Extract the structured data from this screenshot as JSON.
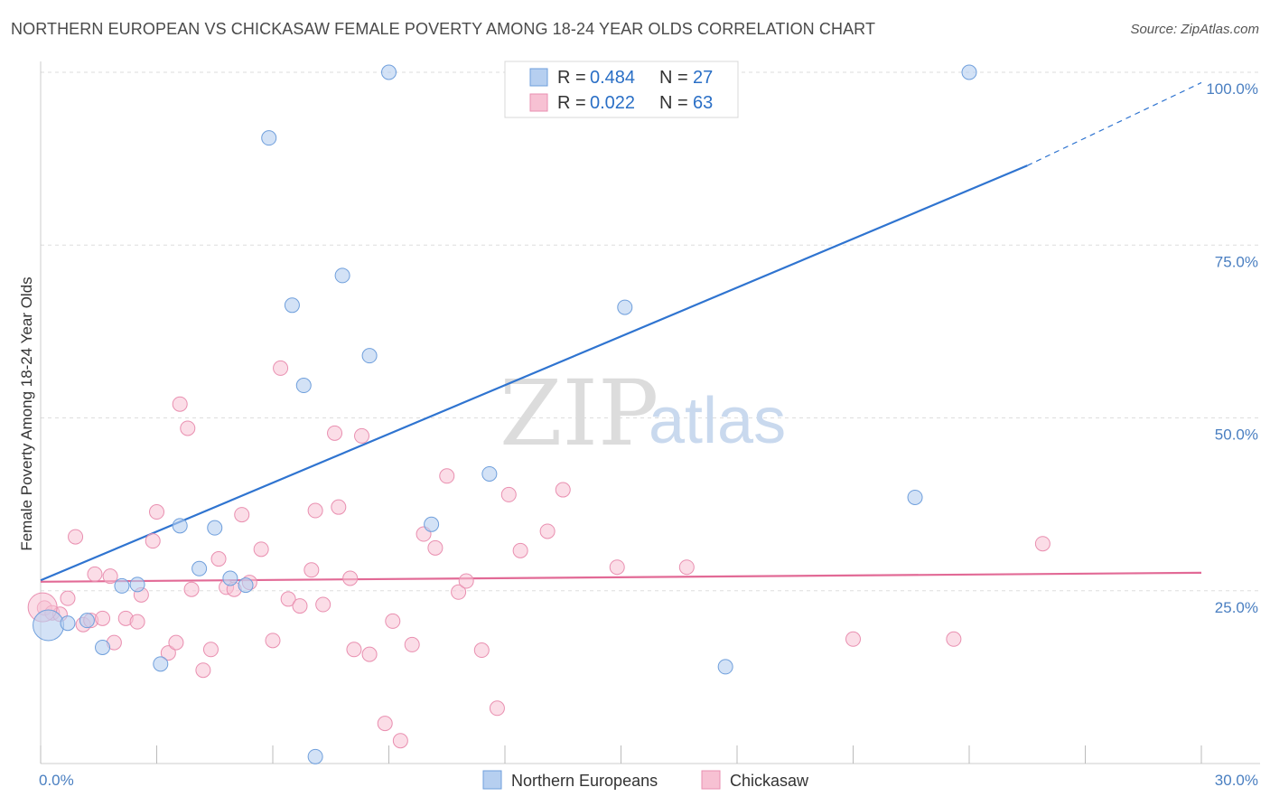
{
  "header": {
    "title": "NORTHERN EUROPEAN VS CHICKASAW FEMALE POVERTY AMONG 18-24 YEAR OLDS CORRELATION CHART",
    "source": "Source: ZipAtlas.com"
  },
  "watermark": {
    "zip": "ZIP",
    "atlas": "atlas"
  },
  "legend_top": {
    "r_label": "R =",
    "n_label": "N =",
    "rows": [
      {
        "r": "0.484",
        "n": "27"
      },
      {
        "r": "0.022",
        "n": "63"
      }
    ]
  },
  "chart_data": {
    "type": "scatter",
    "title": "NORTHERN EUROPEAN VS CHICKASAW FEMALE POVERTY AMONG 18-24 YEAR OLDS CORRELATION CHART",
    "ylabel": "Female Poverty Among 18-24 Year Olds",
    "xlim": [
      0,
      30
    ],
    "ylim": [
      0,
      100
    ],
    "x_tick_labels": [
      "0.0%",
      "30.0%"
    ],
    "y_tick_labels": [
      "25.0%",
      "50.0%",
      "75.0%",
      "100.0%"
    ],
    "y_tick_values": [
      25,
      50,
      75,
      100
    ],
    "grid": true,
    "legend_placement": "bottom-center",
    "colors": {
      "blue_fill": "#b6cff0",
      "blue_stroke": "#6f9fdc",
      "blue_line": "#2f74d0",
      "pink_fill": "#f7c1d3",
      "pink_stroke": "#e98fb0",
      "pink_line": "#e26a96"
    },
    "series": [
      {
        "name": "Northern Europeans",
        "r": 0.484,
        "n": 27,
        "trend": {
          "x0": 0,
          "y0": 26.5,
          "x1": 25.5,
          "y1": 86.5,
          "dash_x1": 30,
          "dash_y1": 98.5
        },
        "points": [
          [
            0.2,
            20.0
          ],
          [
            0.7,
            20.3
          ],
          [
            1.2,
            20.7
          ],
          [
            1.6,
            16.8
          ],
          [
            2.1,
            25.7
          ],
          [
            2.5,
            25.9
          ],
          [
            3.1,
            14.4
          ],
          [
            3.6,
            34.4
          ],
          [
            4.1,
            28.2
          ],
          [
            4.5,
            34.1
          ],
          [
            4.9,
            26.8
          ],
          [
            5.3,
            25.8
          ],
          [
            5.9,
            90.5
          ],
          [
            6.5,
            66.3
          ],
          [
            6.8,
            54.7
          ],
          [
            7.1,
            1.0
          ],
          [
            7.8,
            70.6
          ],
          [
            8.5,
            59.0
          ],
          [
            9.0,
            100.0
          ],
          [
            10.1,
            34.6
          ],
          [
            11.6,
            41.9
          ],
          [
            12.2,
            100.0
          ],
          [
            13.5,
            100.0
          ],
          [
            15.1,
            66.0
          ],
          [
            17.7,
            14.0
          ],
          [
            22.6,
            38.5
          ],
          [
            24.0,
            100.0
          ]
        ]
      },
      {
        "name": "Chickasaw",
        "r": 0.022,
        "n": 63,
        "trend": {
          "x0": 0,
          "y0": 26.3,
          "x1": 30,
          "y1": 27.6
        },
        "points": [
          [
            0.1,
            22.5
          ],
          [
            0.3,
            21.8
          ],
          [
            0.5,
            21.6
          ],
          [
            0.7,
            23.9
          ],
          [
            0.9,
            32.8
          ],
          [
            1.1,
            20.1
          ],
          [
            1.3,
            20.7
          ],
          [
            1.4,
            27.4
          ],
          [
            1.6,
            21.0
          ],
          [
            1.8,
            27.1
          ],
          [
            1.9,
            17.5
          ],
          [
            2.2,
            21.0
          ],
          [
            2.5,
            20.5
          ],
          [
            2.6,
            24.4
          ],
          [
            2.9,
            32.2
          ],
          [
            3.0,
            36.4
          ],
          [
            3.3,
            16.0
          ],
          [
            3.5,
            17.5
          ],
          [
            3.6,
            52.0
          ],
          [
            3.8,
            48.5
          ],
          [
            3.9,
            25.2
          ],
          [
            4.2,
            13.5
          ],
          [
            4.4,
            16.5
          ],
          [
            4.6,
            29.6
          ],
          [
            4.8,
            25.5
          ],
          [
            5.0,
            25.2
          ],
          [
            5.2,
            36.0
          ],
          [
            5.4,
            26.2
          ],
          [
            5.7,
            31.0
          ],
          [
            6.0,
            17.8
          ],
          [
            6.2,
            57.2
          ],
          [
            6.4,
            23.8
          ],
          [
            6.7,
            22.8
          ],
          [
            7.0,
            28.0
          ],
          [
            7.1,
            36.6
          ],
          [
            7.3,
            23.0
          ],
          [
            7.6,
            47.8
          ],
          [
            7.7,
            37.1
          ],
          [
            8.0,
            26.8
          ],
          [
            8.1,
            16.5
          ],
          [
            8.3,
            47.4
          ],
          [
            8.5,
            15.8
          ],
          [
            8.9,
            5.8
          ],
          [
            9.1,
            20.6
          ],
          [
            9.3,
            3.3
          ],
          [
            9.6,
            17.2
          ],
          [
            9.9,
            33.2
          ],
          [
            10.2,
            31.2
          ],
          [
            10.5,
            41.6
          ],
          [
            10.8,
            24.8
          ],
          [
            11.0,
            26.4
          ],
          [
            11.4,
            16.4
          ],
          [
            11.8,
            8.0
          ],
          [
            12.1,
            38.9
          ],
          [
            12.4,
            30.8
          ],
          [
            13.1,
            33.6
          ],
          [
            13.5,
            39.6
          ],
          [
            14.9,
            28.4
          ],
          [
            16.7,
            28.4
          ],
          [
            21.0,
            18.0
          ],
          [
            23.6,
            18.0
          ],
          [
            25.9,
            31.8
          ],
          [
            0.05,
            22.6
          ]
        ]
      }
    ]
  }
}
